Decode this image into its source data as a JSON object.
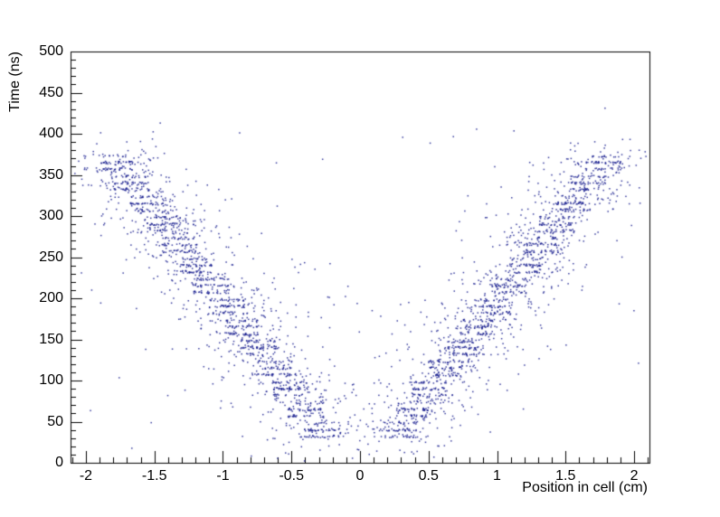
{
  "figure": {
    "background": "#ffffff"
  },
  "chart_data": {
    "type": "scatter",
    "title": "",
    "xlabel": "Position in cell (cm)",
    "ylabel": "Time (ns)",
    "xlim": [
      -2.112,
      2.112
    ],
    "ylim": [
      0,
      500
    ],
    "xticks": [
      -2,
      -1.5,
      -1,
      -0.5,
      0,
      0.5,
      1,
      1.5,
      2
    ],
    "xtick_labels": [
      "-2",
      "-1.5",
      "-1",
      "-0.5",
      "0",
      "0.5",
      "1",
      "1.5",
      "2"
    ],
    "yticks": [
      0,
      50,
      100,
      150,
      200,
      250,
      300,
      350,
      400,
      450,
      500
    ],
    "ytick_labels": [
      "0",
      "50",
      "100",
      "150",
      "200",
      "250",
      "300",
      "350",
      "400",
      "450",
      "500"
    ],
    "x_minor_step": 0.1,
    "y_minor_step": 10,
    "grid": false,
    "legend": false,
    "marker_color": "#151b8d",
    "marker_size_px": 1.5,
    "axis_color": "#000000",
    "pattern": {
      "description": "Mirrored V-shaped drift-time vs position relation: 14 discrete ~25 ns time bands per arm from ~40 ns at |x|~0.28 cm up to ~365 ns at |x|~1.78 cm, each band a dense horizontal cluster of hits (with ~8 ns sub-lines) plus diffuse scatter around the arms and sparse background",
      "seed": 987654321,
      "arms": [
        -1,
        1
      ],
      "bands": {
        "count": 14,
        "t_start_ns": 40,
        "t_step_ns": 25,
        "sub_line_offset_ns": 8,
        "x_start_cm": 0.28,
        "x_step_cm": 0.1154,
        "core_points": 60,
        "core_halfwidth_cm": 0.13,
        "core_jitter_ns": 3,
        "halo_points": 45,
        "halo_sigma_x_cm": 0.18,
        "halo_sigma_t_ns": 14
      },
      "noise": {
        "points": 500,
        "sigma_x_cm": 0.28,
        "sigma_t_ns": 32
      },
      "background": {
        "points": 80,
        "x_range": [
          -2.05,
          2.05
        ],
        "t_range": [
          8,
          420
        ]
      }
    }
  }
}
